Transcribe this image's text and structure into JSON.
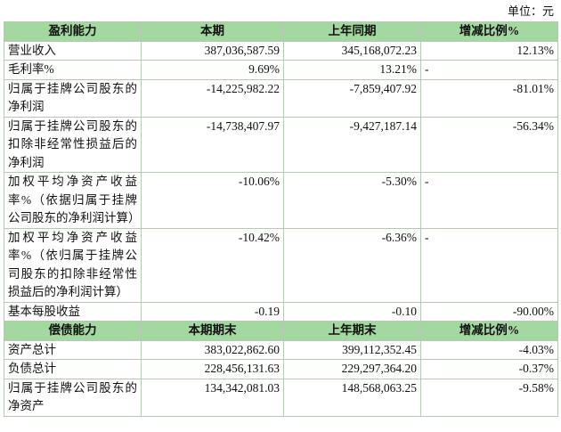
{
  "unit": "单位：元",
  "sections": [
    {
      "header": [
        "盈利能力",
        "本期",
        "上年同期",
        "增减比例%"
      ],
      "rows": [
        [
          "营业收入",
          "387,036,587.59",
          "345,168,072.23",
          "12.13%"
        ],
        [
          "毛利率%",
          "9.69%",
          "13.21%",
          "-"
        ],
        [
          "归属于挂牌公司股东的净利润",
          "-14,225,982.22",
          "-7,859,407.92",
          "-81.01%"
        ],
        [
          "归属于挂牌公司股东的扣除非经常性损益后的净利润",
          "-14,738,407.97",
          "-9,427,187.14",
          "-56.34%"
        ],
        [
          "加权平均净资产收益率%（依据归属于挂牌公司股东的净利润计算）",
          "-10.06%",
          "-5.30%",
          "-"
        ],
        [
          "加权平均净资产收益率%（依归属于挂牌公司股东的扣除非经常性损益后的净利润计算）",
          "-10.42%",
          "-6.36%",
          "-"
        ],
        [
          "基本每股收益",
          "-0.19",
          "-0.10",
          "-90.00%"
        ]
      ]
    },
    {
      "header": [
        "偿债能力",
        "本期期末",
        "上年期末",
        "增减比例%"
      ],
      "rows": [
        [
          "资产总计",
          "383,022,862.60",
          "399,112,352.45",
          "-4.03%"
        ],
        [
          "负债总计",
          "228,456,131.63",
          "229,297,364.20",
          "-0.37%"
        ],
        [
          "归属于挂牌公司股东的净资产",
          "134,342,081.03",
          "148,568,063.25",
          "-9.58%"
        ]
      ]
    }
  ]
}
